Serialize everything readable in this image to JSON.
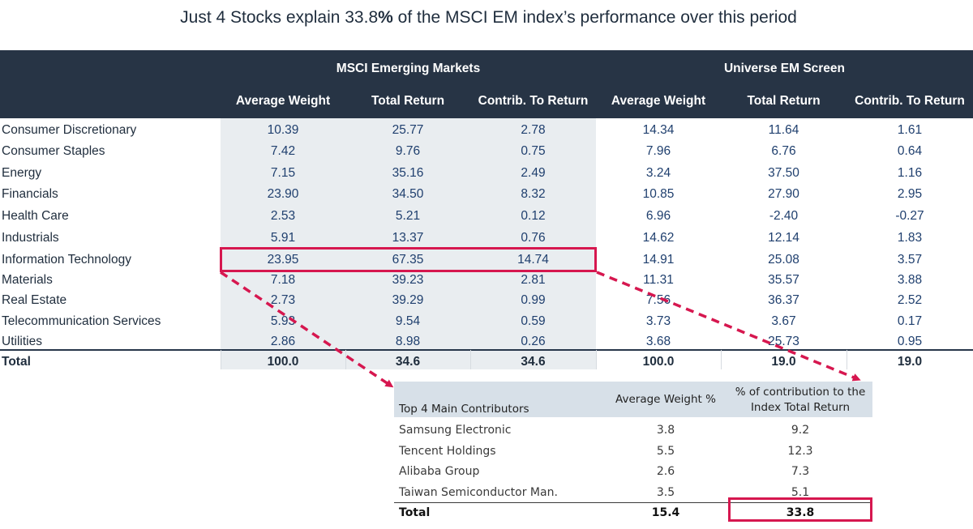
{
  "title": {
    "pre": "Just 4 Stocks explain 33.8",
    "bold": "%",
    "post": " of the MSCI EM index’s performance over this period"
  },
  "chart_data": {
    "type": "table",
    "groups": [
      "MSCI Emerging Markets",
      "Universe EM Screen"
    ],
    "columns": [
      "Average Weight",
      "Total Return",
      "Contrib. To Return",
      "Average Weight",
      "Total Return",
      "Contrib. To Return"
    ],
    "rows": [
      {
        "label": "Consumer Discretionary",
        "values": [
          "10.39",
          "25.77",
          "2.78",
          "14.34",
          "11.64",
          "1.61"
        ]
      },
      {
        "label": "Consumer Staples",
        "values": [
          "7.42",
          "9.76",
          "0.75",
          "7.96",
          "6.76",
          "0.64"
        ]
      },
      {
        "label": "Energy",
        "values": [
          "7.15",
          "35.16",
          "2.49",
          "3.24",
          "37.50",
          "1.16"
        ]
      },
      {
        "label": "Financials",
        "values": [
          "23.90",
          "34.50",
          "8.32",
          "10.85",
          "27.90",
          "2.95"
        ]
      },
      {
        "label": "Health Care",
        "values": [
          "2.53",
          "5.21",
          "0.12",
          "6.96",
          "-2.40",
          "-0.27"
        ]
      },
      {
        "label": "Industrials",
        "values": [
          "5.91",
          "13.37",
          "0.76",
          "14.62",
          "12.14",
          "1.83"
        ]
      },
      {
        "label": "Information Technology",
        "values": [
          "23.95",
          "67.35",
          "14.74",
          "14.91",
          "25.08",
          "3.57"
        ]
      },
      {
        "label": "Materials",
        "values": [
          "7.18",
          "39.23",
          "2.81",
          "11.31",
          "35.57",
          "3.88"
        ]
      },
      {
        "label": "Real Estate",
        "values": [
          "2.73",
          "39.29",
          "0.99",
          "7.56",
          "36.37",
          "2.52"
        ]
      },
      {
        "label": "Telecommunication Services",
        "values": [
          "5.93",
          "9.54",
          "0.59",
          "3.73",
          "3.67",
          "0.17"
        ]
      },
      {
        "label": "Utilities",
        "values": [
          "2.86",
          "8.98",
          "0.26",
          "3.68",
          "25.73",
          "0.95"
        ]
      }
    ],
    "total": {
      "label": "Total",
      "values": [
        "100.0",
        "34.6",
        "34.6",
        "100.0",
        "19.0",
        "19.0"
      ]
    },
    "highlight_row": "Information Technology",
    "contributors_table": {
      "columns": [
        "Top 4 Main Contributors",
        "Average Weight %",
        "% of contribution to the Index Total Return"
      ],
      "rows": [
        {
          "name": "Samsung Electronic",
          "weight": "3.8",
          "contribution": "9.2"
        },
        {
          "name": "Tencent Holdings",
          "weight": "5.5",
          "contribution": "12.3"
        },
        {
          "name": "Alibaba Group",
          "weight": "2.6",
          "contribution": "7.3"
        },
        {
          "name": "Taiwan Semiconductor Man.",
          "weight": "3.5",
          "contribution": "5.1"
        }
      ],
      "total": {
        "name": "Total",
        "weight": "15.4",
        "contribution": "33.8"
      }
    }
  },
  "colors": {
    "header_bg": "#273445",
    "shade": "#e9edf0",
    "highlight": "#d6174f",
    "value_text": "#1f3f6e",
    "small_header_bg": "#d7e0e8"
  }
}
